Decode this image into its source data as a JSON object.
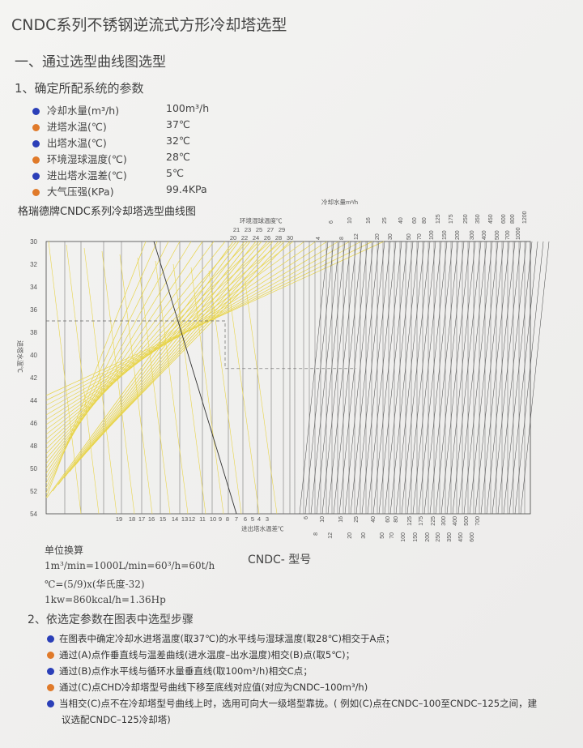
{
  "title": "CNDC系列不锈钢逆流式方形冷却塔选型",
  "section1": "一、通过选型曲线图选型",
  "subsection1": "1、确定所配系统的参数",
  "params": [
    {
      "label": "冷却水量(m³/h)",
      "value": "100m³/h",
      "color": "#2b3fb8"
    },
    {
      "label": "进塔水温(℃)",
      "value": "37℃",
      "color": "#e07a2a"
    },
    {
      "label": "出塔水温(℃)",
      "value": "32℃",
      "color": "#2b3fb8"
    },
    {
      "label": "环境湿球温度(℃)",
      "value": "28℃",
      "color": "#e07a2a"
    },
    {
      "label": "进出塔水温差(℃)",
      "value": "5℃",
      "color": "#2b3fb8"
    },
    {
      "label": "大气压强(KPa)",
      "value": "99.4KPa",
      "color": "#e07a2a"
    }
  ],
  "chart": {
    "title": "格瑞德牌CNDC系列冷却塔选型曲线图",
    "y_label": "进塔水温℃",
    "y_ticks": [
      "30",
      "32",
      "34",
      "36",
      "38",
      "40",
      "42",
      "44",
      "46",
      "48",
      "50",
      "52",
      "54"
    ],
    "wetbulb_label": "环境湿球温度℃",
    "wetbulb_top_odd": [
      "21",
      "23",
      "25",
      "27",
      "29"
    ],
    "wetbulb_top_even": [
      "20",
      "22",
      "24",
      "26",
      "28",
      "30"
    ],
    "flow_label": "冷却水量m³/h",
    "flow_top": [
      "4",
      "6",
      "8",
      "10",
      "12",
      "16",
      "20",
      "25",
      "30",
      "40",
      "50",
      "60",
      "70",
      "80",
      "100",
      "125",
      "150",
      "175",
      "200",
      "250",
      "300",
      "350",
      "400",
      "450",
      "500",
      "600",
      "700",
      "800",
      "1000",
      "1200"
    ],
    "tempdiff_ticks": [
      "19",
      "18",
      "17",
      "16",
      "15",
      "14",
      "13",
      "12",
      "11",
      "10",
      "9",
      "8",
      "7",
      "6",
      "5",
      "4",
      "3"
    ],
    "tempdiff_label": "进出塔水温差℃",
    "model_ticks": [
      "6",
      "8",
      "10",
      "12",
      "16",
      "20",
      "25",
      "30",
      "40",
      "50",
      "60",
      "70",
      "80",
      "100",
      "125",
      "150",
      "175",
      "200",
      "225",
      "250",
      "300",
      "350",
      "400",
      "450",
      "500",
      "600",
      "700"
    ],
    "model_label": "CNDC- 型号",
    "grid_color": "#444444",
    "wetbulb_line_color": "#e8d44a"
  },
  "units": {
    "title": "单位换算",
    "lines": [
      "1m³/min=1000L/min=60³/h=60t/h",
      "℃=(5/9)x(华氏度-32)",
      "1kw=860kcal/h=1.36Hp"
    ]
  },
  "section2": "2、依选定参数在图表中选型步骤",
  "steps": [
    {
      "text": "在图表中确定冷却水进塔温度(取37℃)的水平线与湿球温度(取28℃)相交于A点；",
      "color": "#2b3fb8"
    },
    {
      "text": "通过(A)点作垂直线与温差曲线(进水温度–出水温度)相交(B)点(取5℃)；",
      "color": "#e07a2a"
    },
    {
      "text": "通过(B)点作水平线与循环水量垂直线(取100m³/h)相交C点；",
      "color": "#2b3fb8"
    },
    {
      "text": "通过(C)点CHD冷却塔型号曲线下移至底线对应值(对应为CNDC–100m³/h)",
      "color": "#e07a2a"
    },
    {
      "text": "当相交(C)点不在冷却塔型号曲线上时，选用可向大一级塔型靠拢。( 例如(C)点在CNDC–100至CNDC–125之间，建",
      "color": "#2b3fb8"
    }
  ],
  "step5_cont": "议选配CNDC–125冷却塔)"
}
